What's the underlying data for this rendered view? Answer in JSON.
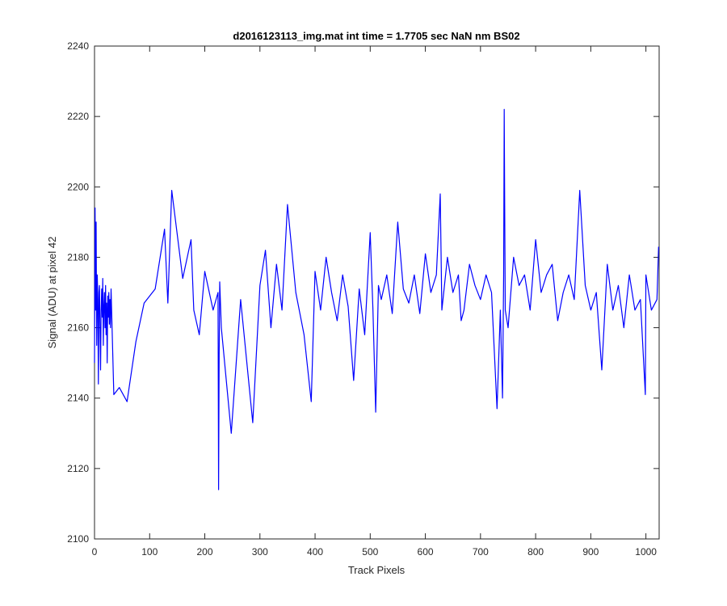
{
  "chart_data": {
    "type": "line",
    "title": "d2016123113_img.mat int time = 1.7705 sec  NaN nm BS02",
    "xlabel": "Track Pixels",
    "ylabel": "Signal (ADU) at pixel 42",
    "xlim": [
      0,
      1024
    ],
    "ylim": [
      2100,
      2240
    ],
    "xticks": [
      0,
      100,
      200,
      300,
      400,
      500,
      600,
      700,
      800,
      900,
      1000
    ],
    "yticks": [
      2100,
      2120,
      2140,
      2160,
      2180,
      2200,
      2220,
      2240
    ],
    "grid": false,
    "legend": "none",
    "colors": {
      "line": "#0000ff",
      "axes": "#262626"
    },
    "series": [
      {
        "x": [
          0,
          1,
          2,
          3,
          4,
          5,
          6,
          7,
          8,
          9,
          10,
          11,
          12,
          13,
          14,
          15,
          16,
          17,
          18,
          19,
          20,
          21,
          22,
          23,
          24,
          25,
          26,
          27,
          28,
          29,
          30,
          35,
          45,
          59,
          75,
          90,
          110,
          127,
          133,
          140,
          160,
          175,
          180,
          190,
          200,
          215,
          224,
          225,
          226,
          227,
          230,
          248,
          265,
          287,
          300,
          310,
          320,
          330,
          340,
          350,
          365,
          380,
          393,
          400,
          410,
          420,
          430,
          440,
          450,
          460,
          470,
          480,
          490,
          500,
          505,
          510,
          515,
          520,
          530,
          540,
          550,
          560,
          570,
          580,
          590,
          600,
          610,
          620,
          627,
          630,
          640,
          650,
          660,
          665,
          670,
          680,
          690,
          700,
          710,
          720,
          730,
          736,
          740,
          742,
          743,
          744,
          745,
          750,
          760,
          770,
          780,
          790,
          800,
          810,
          820,
          830,
          840,
          850,
          860,
          870,
          880,
          890,
          900,
          910,
          920,
          930,
          940,
          950,
          960,
          970,
          980,
          990,
          999,
          1000,
          1010,
          1020,
          1023
        ],
        "y": [
          2150,
          2194,
          2165,
          2190,
          2155,
          2175,
          2168,
          2144,
          2170,
          2172,
          2160,
          2148,
          2165,
          2171,
          2163,
          2174,
          2155,
          2166,
          2170,
          2160,
          2172,
          2158,
          2167,
          2150,
          2169,
          2163,
          2170,
          2161,
          2168,
          2160,
          2171,
          2141,
          2143,
          2139,
          2156,
          2167,
          2171,
          2188,
          2167,
          2199,
          2174,
          2185,
          2165,
          2158,
          2176,
          2165,
          2170,
          2114,
          2152,
          2173,
          2160,
          2130,
          2168,
          2133,
          2172,
          2182,
          2160,
          2178,
          2165,
          2195,
          2170,
          2158,
          2139,
          2176,
          2165,
          2180,
          2170,
          2162,
          2175,
          2166,
          2145,
          2171,
          2158,
          2187,
          2165,
          2136,
          2172,
          2168,
          2175,
          2164,
          2190,
          2171,
          2167,
          2175,
          2164,
          2181,
          2170,
          2175,
          2198,
          2165,
          2180,
          2170,
          2175,
          2162,
          2165,
          2178,
          2172,
          2168,
          2175,
          2170,
          2137,
          2165,
          2140,
          2175,
          2222,
          2190,
          2165,
          2160,
          2180,
          2172,
          2175,
          2165,
          2185,
          2170,
          2175,
          2178,
          2162,
          2170,
          2175,
          2168,
          2199,
          2172,
          2165,
          2170,
          2148,
          2178,
          2165,
          2172,
          2160,
          2175,
          2165,
          2168,
          2141,
          2175,
          2165,
          2168,
          2183
        ]
      }
    ]
  }
}
